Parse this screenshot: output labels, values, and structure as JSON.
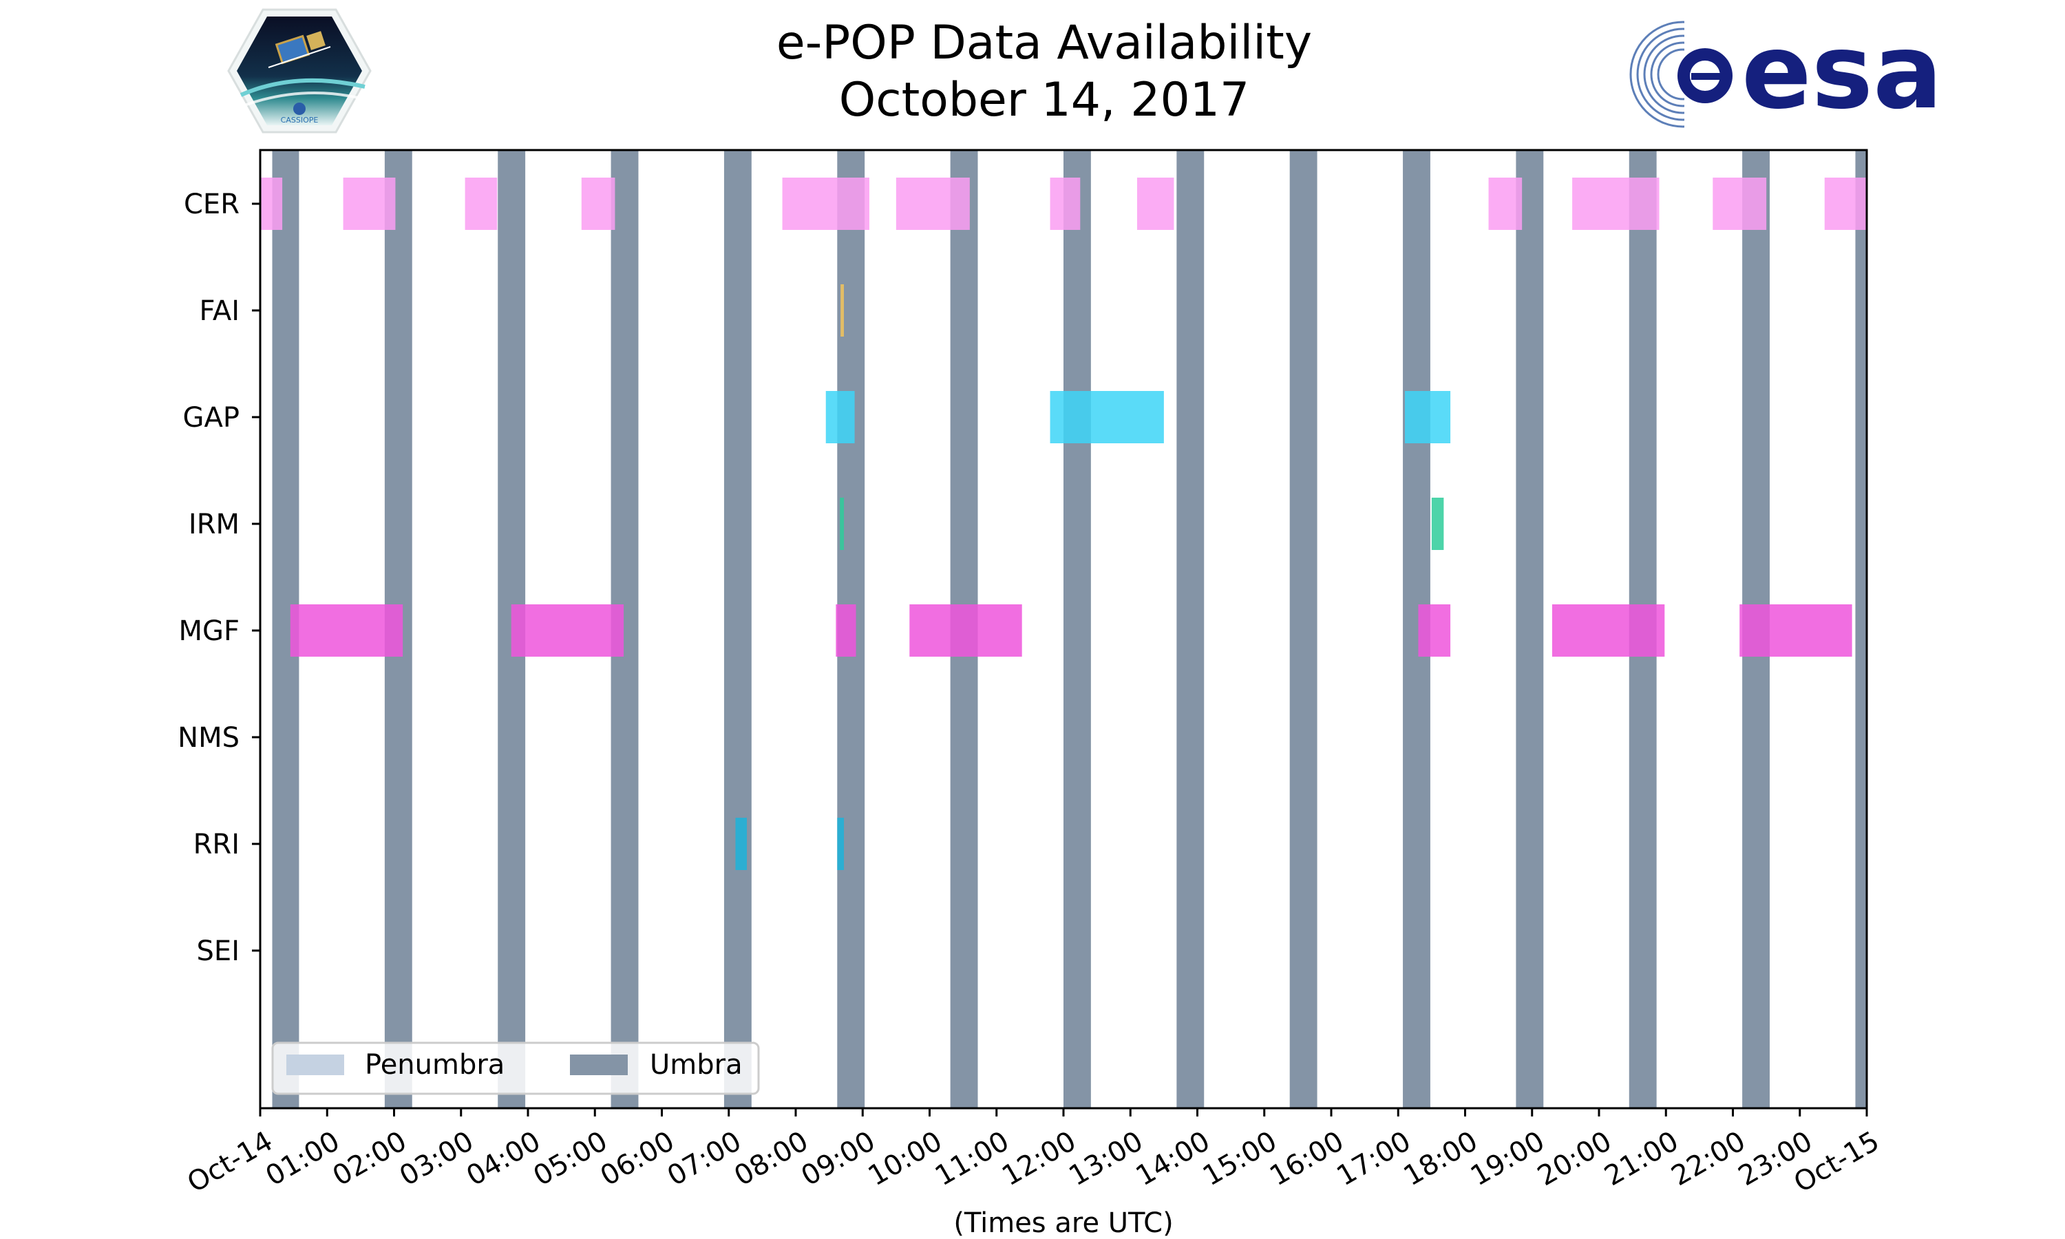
{
  "chart_data": {
    "type": "timeline",
    "title_line1": "e-POP Data Availability",
    "title_line2": "October 14, 2017",
    "xlabel": "(Times are UTC)",
    "xlim_hours": [
      0,
      24
    ],
    "x_tick_labels": [
      "Oct-14",
      "01:00",
      "02:00",
      "03:00",
      "04:00",
      "05:00",
      "06:00",
      "07:00",
      "08:00",
      "09:00",
      "10:00",
      "11:00",
      "12:00",
      "13:00",
      "14:00",
      "15:00",
      "16:00",
      "17:00",
      "18:00",
      "19:00",
      "20:00",
      "21:00",
      "22:00",
      "23:00",
      "Oct-15"
    ],
    "instruments": [
      "CER",
      "FAI",
      "GAP",
      "IRM",
      "MGF",
      "NMS",
      "RRI",
      "SEI"
    ],
    "colors": {
      "CER": "#fa9ef2",
      "FAI": "#f2c45a",
      "GAP": "#3dd5f7",
      "IRM": "#2ecc9a",
      "MGF": "#ee55dc",
      "NMS": "#999999",
      "RRI": "#1cb3d9",
      "SEI": "#999999",
      "umbra": "#8494a6",
      "penumbra": "#c5d2e2"
    },
    "umbra_hours": [
      [
        0.18,
        0.58
      ],
      [
        1.86,
        2.27
      ],
      [
        3.55,
        3.96
      ],
      [
        5.24,
        5.65
      ],
      [
        6.93,
        7.34
      ],
      [
        8.62,
        9.03
      ],
      [
        10.31,
        10.72
      ],
      [
        12.0,
        12.41
      ],
      [
        13.69,
        14.1
      ],
      [
        15.38,
        15.79
      ],
      [
        17.07,
        17.48
      ],
      [
        18.76,
        19.17
      ],
      [
        20.45,
        20.86
      ],
      [
        22.14,
        22.55
      ],
      [
        23.83,
        24.0
      ]
    ],
    "segments": {
      "CER": [
        [
          0.0,
          0.33
        ],
        [
          1.24,
          2.02
        ],
        [
          3.06,
          3.54
        ],
        [
          4.8,
          5.3
        ],
        [
          7.8,
          9.1
        ],
        [
          9.5,
          10.6
        ],
        [
          11.8,
          12.25
        ],
        [
          13.1,
          13.65
        ],
        [
          18.35,
          18.85
        ],
        [
          19.6,
          20.9
        ],
        [
          21.7,
          22.5
        ],
        [
          23.37,
          24.0
        ]
      ],
      "FAI": [
        [
          8.67,
          8.72
        ]
      ],
      "GAP": [
        [
          8.45,
          8.88
        ],
        [
          11.8,
          13.5
        ],
        [
          17.1,
          17.78
        ]
      ],
      "IRM": [
        [
          8.66,
          8.72
        ],
        [
          17.5,
          17.68
        ]
      ],
      "MGF": [
        [
          0.45,
          2.13
        ],
        [
          3.75,
          5.43
        ],
        [
          8.6,
          8.9
        ],
        [
          9.7,
          11.38
        ],
        [
          17.3,
          17.78
        ],
        [
          19.3,
          20.98
        ],
        [
          22.1,
          23.78
        ]
      ],
      "NMS": [],
      "RRI": [
        [
          7.1,
          7.27
        ],
        [
          8.62,
          8.72
        ]
      ],
      "SEI": []
    },
    "legend": [
      {
        "label": "Penumbra",
        "key": "penumbra"
      },
      {
        "label": "Umbra",
        "key": "umbra"
      }
    ],
    "legend_position": "lower-left"
  },
  "logos": {
    "mission_text": "CASSIOPE",
    "agency_text": "esa"
  }
}
